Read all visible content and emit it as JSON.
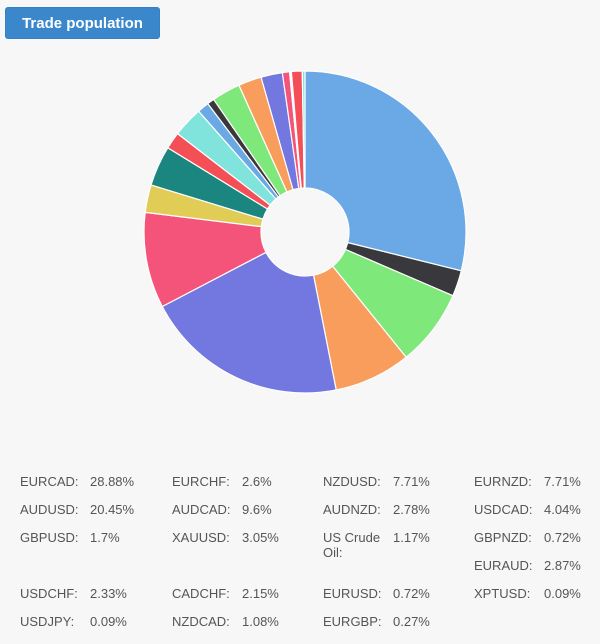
{
  "header": {
    "title_button": "Trade population"
  },
  "chart_data": {
    "type": "pie",
    "variant": "donut",
    "title": "Trade population",
    "start_angle": "12 o'clock, clockwise",
    "categories": [
      "EURCAD",
      "EURCHF",
      "NZDUSD",
      "EURNZD",
      "AUDUSD",
      "AUDCAD",
      "AUDNZD",
      "USDCAD",
      "GBPUSD",
      "XAUUSD",
      "US Crude Oil",
      "GBPNZD",
      "EURAUD",
      "USDCHF",
      "CADCHF",
      "EURUSD",
      "XPTUSD",
      "USDJPY",
      "NZDCAD",
      "EURGBP"
    ],
    "values": [
      28.88,
      2.6,
      7.71,
      7.71,
      20.45,
      9.6,
      2.78,
      4.04,
      1.7,
      3.05,
      1.17,
      0.72,
      2.87,
      2.33,
      2.15,
      0.72,
      0.09,
      0.09,
      1.08,
      0.27
    ],
    "unit": "%",
    "colors": [
      "#6aa9e6",
      "#38383d",
      "#7fe87a",
      "#f89d5c",
      "#7378e0",
      "#f4547a",
      "#e1cd55",
      "#1b857f",
      "#f44f56",
      "#80e3dc"
    ],
    "legend_position": "bottom, 4 columns"
  },
  "legend": {
    "items": [
      {
        "label": "EURCAD:",
        "value": "28.88%",
        "col": 0,
        "row": 0
      },
      {
        "label": "EURCHF:",
        "value": "2.6%",
        "col": 1,
        "row": 0
      },
      {
        "label": "NZDUSD:",
        "value": "7.71%",
        "col": 2,
        "row": 0
      },
      {
        "label": "EURNZD:",
        "value": "7.71%",
        "col": 3,
        "row": 0
      },
      {
        "label": "AUDUSD:",
        "value": "20.45%",
        "col": 0,
        "row": 1
      },
      {
        "label": "AUDCAD:",
        "value": "9.6%",
        "col": 1,
        "row": 1
      },
      {
        "label": "AUDNZD:",
        "value": "2.78%",
        "col": 2,
        "row": 1
      },
      {
        "label": "USDCAD:",
        "value": "4.04%",
        "col": 3,
        "row": 1
      },
      {
        "label": "GBPUSD:",
        "value": "1.7%",
        "col": 0,
        "row": 2
      },
      {
        "label": "XAUUSD:",
        "value": "3.05%",
        "col": 1,
        "row": 2
      },
      {
        "label": "US Crude Oil:",
        "value": "1.17%",
        "col": 2,
        "row": 2
      },
      {
        "label": "GBPNZD:",
        "value": "0.72%",
        "col": 3,
        "row": 2
      },
      {
        "label": "EURAUD:",
        "value": "2.87%",
        "col": 3,
        "row": 3
      },
      {
        "label": "USDCHF:",
        "value": "2.33%",
        "col": 0,
        "row": 4
      },
      {
        "label": "CADCHF:",
        "value": "2.15%",
        "col": 1,
        "row": 4
      },
      {
        "label": "EURUSD:",
        "value": "0.72%",
        "col": 2,
        "row": 4
      },
      {
        "label": "XPTUSD:",
        "value": "0.09%",
        "col": 3,
        "row": 4
      },
      {
        "label": "USDJPY:",
        "value": "0.09%",
        "col": 0,
        "row": 5
      },
      {
        "label": "NZDCAD:",
        "value": "1.08%",
        "col": 1,
        "row": 5
      },
      {
        "label": "EURGBP:",
        "value": "0.27%",
        "col": 2,
        "row": 5
      }
    ]
  }
}
